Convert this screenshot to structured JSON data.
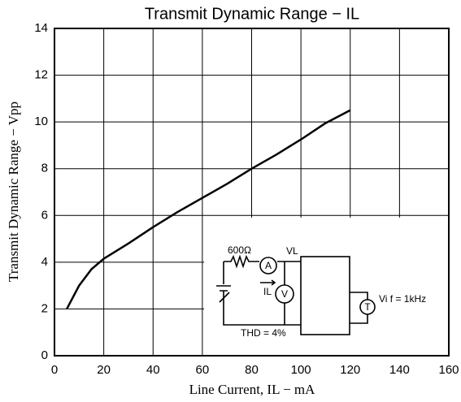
{
  "chart_data": {
    "type": "line",
    "title": "Transmit Dynamic Range − IL",
    "x_label": "Line Current, IL − mA",
    "y_label": "Transmit Dynamic Range − Vpp",
    "x": [
      5,
      10,
      15,
      20,
      30,
      40,
      50,
      60,
      70,
      80,
      90,
      100,
      110,
      120
    ],
    "series": [
      {
        "name": "Transmit Dynamic Range",
        "color": "#000000",
        "values": [
          2,
          3,
          3.7,
          4.15,
          4.8,
          5.5,
          6.15,
          6.75,
          7.35,
          8.0,
          8.6,
          9.25,
          9.95,
          10.5
        ]
      }
    ],
    "xlim": [
      0,
      160
    ],
    "xticks": [
      0,
      20,
      40,
      60,
      80,
      100,
      120,
      140,
      160
    ],
    "ylim": [
      0,
      14
    ],
    "yticks": [
      0,
      2,
      4,
      6,
      8,
      10,
      12,
      14
    ],
    "grid": true,
    "annotations": [
      "600Ω",
      "VL",
      "A",
      "IL",
      "V",
      "THD = 4%",
      "T",
      "Vi f = 1kHz"
    ]
  }
}
